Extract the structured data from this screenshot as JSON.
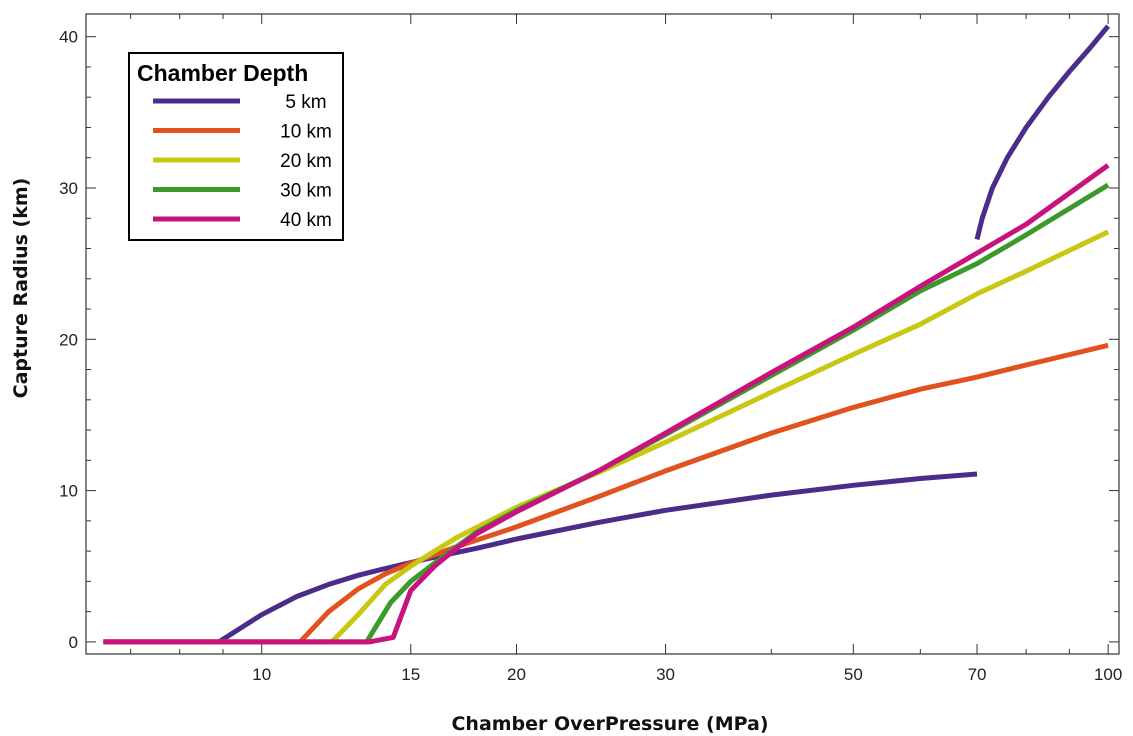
{
  "chart_data": {
    "type": "line",
    "title": "",
    "xlabel": "Chamber OverPressure (MPa)",
    "ylabel": "Capture Radius (km)",
    "x_scale": "log",
    "xlim": [
      6.2,
      103
    ],
    "ylim": [
      -0.8,
      41.5
    ],
    "x_ticks": [
      {
        "value": 10,
        "label": "10"
      },
      {
        "value": 15,
        "label": "15"
      },
      {
        "value": 20,
        "label": "20"
      },
      {
        "value": 30,
        "label": "30"
      },
      {
        "value": 50,
        "label": "50"
      },
      {
        "value": 70,
        "label": "70"
      },
      {
        "value": 100,
        "label": "100"
      }
    ],
    "x_minor_ticks": [
      7,
      8,
      9,
      40,
      60,
      80,
      90
    ],
    "y_ticks": [
      {
        "value": 0,
        "label": "0"
      },
      {
        "value": 10,
        "label": "10"
      },
      {
        "value": 20,
        "label": "20"
      },
      {
        "value": 30,
        "label": "30"
      },
      {
        "value": 40,
        "label": "40"
      }
    ],
    "y_minor_step": 2,
    "grid": false,
    "legend": {
      "title": "Chamber Depth",
      "position": "top-left"
    },
    "series": [
      {
        "name": "5 km",
        "color": "#4b2c8a",
        "segments": [
          [
            [
              6.5,
              0
            ],
            [
              8.9,
              0
            ],
            [
              10,
              1.8
            ],
            [
              11,
              3.0
            ],
            [
              12,
              3.8
            ],
            [
              13,
              4.4
            ],
            [
              14,
              4.85
            ],
            [
              15,
              5.25
            ],
            [
              16,
              5.6
            ],
            [
              18,
              6.2
            ],
            [
              20,
              6.8
            ],
            [
              25,
              7.9
            ],
            [
              30,
              8.7
            ],
            [
              40,
              9.7
            ],
            [
              50,
              10.35
            ],
            [
              60,
              10.8
            ],
            [
              70,
              11.1
            ]
          ],
          [
            [
              70,
              26.6
            ],
            [
              71,
              28.0
            ],
            [
              73,
              30.0
            ],
            [
              76,
              32.0
            ],
            [
              80,
              34.0
            ],
            [
              85,
              36.0
            ],
            [
              90,
              37.7
            ],
            [
              95,
              39.2
            ],
            [
              100,
              40.7
            ]
          ]
        ]
      },
      {
        "name": "10 km",
        "color": "#e0521e",
        "segments": [
          [
            [
              6.5,
              0
            ],
            [
              11.1,
              0
            ],
            [
              12,
              2.0
            ],
            [
              13,
              3.5
            ],
            [
              14,
              4.5
            ],
            [
              15,
              5.2
            ],
            [
              16,
              5.75
            ],
            [
              17,
              6.3
            ],
            [
              18,
              6.75
            ],
            [
              20,
              7.6
            ],
            [
              25,
              9.6
            ],
            [
              30,
              11.3
            ],
            [
              40,
              13.8
            ],
            [
              50,
              15.5
            ],
            [
              60,
              16.7
            ],
            [
              70,
              17.5
            ],
            [
              80,
              18.3
            ],
            [
              100,
              19.6
            ]
          ]
        ]
      },
      {
        "name": "20 km",
        "color": "#c8c814",
        "segments": [
          [
            [
              6.5,
              0
            ],
            [
              12.1,
              0
            ],
            [
              13,
              1.8
            ],
            [
              14,
              3.8
            ],
            [
              15,
              5.0
            ],
            [
              16,
              6.0
            ],
            [
              17,
              6.9
            ],
            [
              18,
              7.6
            ],
            [
              20,
              8.9
            ],
            [
              25,
              11.2
            ],
            [
              30,
              13.2
            ],
            [
              40,
              16.5
            ],
            [
              50,
              19.0
            ],
            [
              60,
              21.0
            ],
            [
              70,
              23.0
            ],
            [
              80,
              24.5
            ],
            [
              100,
              27.1
            ]
          ]
        ]
      },
      {
        "name": "30 km",
        "color": "#3c9a2a",
        "segments": [
          [
            [
              6.5,
              0
            ],
            [
              13.3,
              0
            ],
            [
              14.2,
              2.6
            ],
            [
              15,
              4.0
            ],
            [
              16,
              5.2
            ],
            [
              17,
              6.3
            ],
            [
              18,
              7.3
            ],
            [
              20,
              8.7
            ],
            [
              25,
              11.3
            ],
            [
              30,
              13.7
            ],
            [
              40,
              17.6
            ],
            [
              50,
              20.6
            ],
            [
              60,
              23.2
            ],
            [
              70,
              25.0
            ],
            [
              80,
              26.9
            ],
            [
              100,
              30.2
            ]
          ]
        ]
      },
      {
        "name": "40 km",
        "color": "#c8127e",
        "segments": [
          [
            [
              6.5,
              0
            ],
            [
              13.4,
              0
            ],
            [
              14.3,
              0.3
            ],
            [
              15,
              3.4
            ],
            [
              16,
              5.0
            ],
            [
              17,
              6.2
            ],
            [
              18,
              7.2
            ],
            [
              20,
              8.6
            ],
            [
              25,
              11.3
            ],
            [
              30,
              13.8
            ],
            [
              40,
              17.8
            ],
            [
              50,
              20.8
            ],
            [
              60,
              23.5
            ],
            [
              70,
              25.7
            ],
            [
              80,
              27.6
            ],
            [
              100,
              31.5
            ]
          ]
        ]
      }
    ]
  }
}
